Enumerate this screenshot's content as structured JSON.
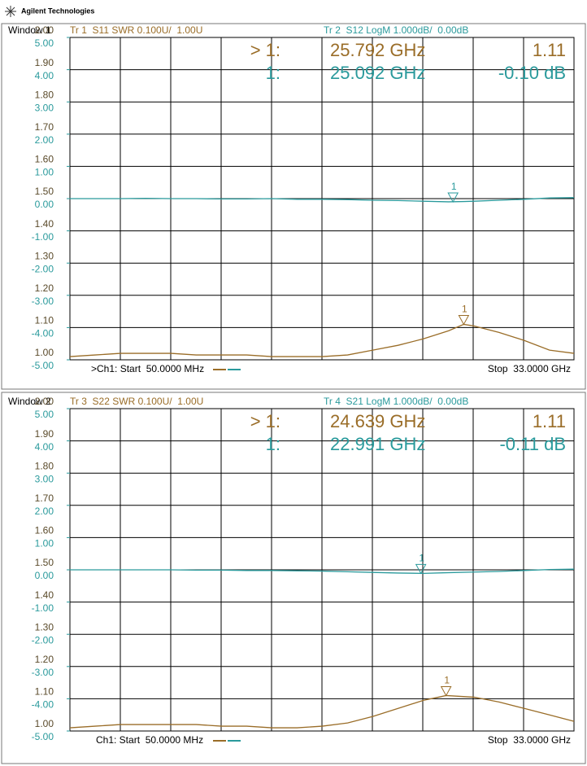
{
  "header": {
    "brand": "Agilent Technologies"
  },
  "chart_data": [
    {
      "type": "line",
      "window": "Window 1",
      "start": ">Ch1: Start  50.0000 MHz",
      "stop": "Stop  33.0000 GHz",
      "x": [
        0.05,
        1.7,
        3.35,
        5,
        6.65,
        8.3,
        9.95,
        11.6,
        13.25,
        14.9,
        16.55,
        18.2,
        19.85,
        21.5,
        23.15,
        24.8,
        25.792,
        26.45,
        28.1,
        29.75,
        31.4,
        33
      ],
      "xlim": [
        0.05,
        33
      ],
      "ylim": [
        1,
        2
      ],
      "yticks": [
        {
          "value": 1,
          "label": "1.00"
        },
        {
          "value": 1.1,
          "label": "1.10"
        },
        {
          "value": 1.2,
          "label": "1.20"
        },
        {
          "value": 1.3,
          "label": "1.30"
        },
        {
          "value": 1.4,
          "label": "1.40"
        },
        {
          "value": 1.5,
          "label": "1.50"
        },
        {
          "value": 1.6,
          "label": "1.60"
        },
        {
          "value": 1.7,
          "label": "1.70"
        },
        {
          "value": 1.8,
          "label": "1.80"
        },
        {
          "value": 1.9,
          "label": "1.90"
        },
        {
          "value": 2,
          "label": "2.00"
        }
      ],
      "y2lim": [
        -5,
        5
      ],
      "y2ticks": [
        {
          "value": -5,
          "label": "-5.00"
        },
        {
          "value": -4,
          "label": "-4.00"
        },
        {
          "value": -3,
          "label": "-3.00"
        },
        {
          "value": -2,
          "label": "-2.00"
        },
        {
          "value": -1,
          "label": "-1.00"
        },
        {
          "value": 0,
          "label": "0.00"
        },
        {
          "value": 1,
          "label": "1.00"
        },
        {
          "value": 2,
          "label": "2.00"
        },
        {
          "value": 3,
          "label": "3.00"
        },
        {
          "value": 4,
          "label": "4.00"
        },
        {
          "value": 5,
          "label": "5.00"
        }
      ],
      "grid": true,
      "series": [
        {
          "name": "Tr 1  S11 SWR 0.100U/  1.00U",
          "color": "#9a6d28",
          "values": [
            1.01,
            1.015,
            1.02,
            1.02,
            1.02,
            1.015,
            1.015,
            1.015,
            1.01,
            1.01,
            1.01,
            1.015,
            1.03,
            1.045,
            1.065,
            1.09,
            1.11,
            1.105,
            1.085,
            1.06,
            1.03,
            1.02
          ],
          "marker": {
            "readout": "> 1:",
            "id": "1",
            "x": 25.792,
            "x_label": "25.792 GHz",
            "value": 1.11,
            "value_label": "1.11"
          }
        },
        {
          "name": "Tr 2  S12 LogM 1.000dB/  0.00dB",
          "color": "#2a9a9c",
          "axis": "y2",
          "values": [
            0,
            0,
            0,
            0.01,
            0,
            0,
            -0.01,
            -0.01,
            0,
            -0.02,
            -0.02,
            -0.03,
            -0.05,
            -0.06,
            -0.08,
            -0.1,
            -0.09,
            -0.08,
            -0.05,
            -0.02,
            0.02,
            0.03
          ],
          "marker": {
            "readout": "1:",
            "id": "1",
            "x": 25.092,
            "x_label": "25.092 GHz",
            "value": -0.1,
            "value_label": "-0.10 dB"
          }
        }
      ]
    },
    {
      "type": "line",
      "window": "Window 2",
      "start": "Ch1: Start  50.0000 MHz",
      "stop": "Stop  33.0000 GHz",
      "x": [
        0.05,
        1.7,
        3.35,
        5,
        6.65,
        8.3,
        9.95,
        11.6,
        13.25,
        14.9,
        16.55,
        18.2,
        19.85,
        21.5,
        23.15,
        24.639,
        26.45,
        28.1,
        29.75,
        31.4,
        33
      ],
      "xlim": [
        0.05,
        33
      ],
      "ylim": [
        1,
        2
      ],
      "yticks": [
        {
          "value": 1,
          "label": "1.00"
        },
        {
          "value": 1.1,
          "label": "1.10"
        },
        {
          "value": 1.2,
          "label": "1.20"
        },
        {
          "value": 1.3,
          "label": "1.30"
        },
        {
          "value": 1.4,
          "label": "1.40"
        },
        {
          "value": 1.5,
          "label": "1.50"
        },
        {
          "value": 1.6,
          "label": "1.60"
        },
        {
          "value": 1.7,
          "label": "1.70"
        },
        {
          "value": 1.8,
          "label": "1.80"
        },
        {
          "value": 1.9,
          "label": "1.90"
        },
        {
          "value": 2,
          "label": "2.00"
        }
      ],
      "y2lim": [
        -5,
        5
      ],
      "y2ticks": [
        {
          "value": -5,
          "label": "-5.00"
        },
        {
          "value": -4,
          "label": "-4.00"
        },
        {
          "value": -3,
          "label": "-3.00"
        },
        {
          "value": -2,
          "label": "-2.00"
        },
        {
          "value": -1,
          "label": "-1.00"
        },
        {
          "value": 0,
          "label": "0.00"
        },
        {
          "value": 1,
          "label": "1.00"
        },
        {
          "value": 2,
          "label": "2.00"
        },
        {
          "value": 3,
          "label": "3.00"
        },
        {
          "value": 4,
          "label": "4.00"
        },
        {
          "value": 5,
          "label": "5.00"
        }
      ],
      "grid": true,
      "series": [
        {
          "name": "Tr 3  S22 SWR 0.100U/  1.00U",
          "color": "#9a6d28",
          "values": [
            1.01,
            1.015,
            1.02,
            1.02,
            1.02,
            1.02,
            1.015,
            1.015,
            1.01,
            1.01,
            1.015,
            1.025,
            1.045,
            1.07,
            1.095,
            1.11,
            1.105,
            1.09,
            1.07,
            1.05,
            1.03
          ],
          "marker": {
            "readout": "> 1:",
            "id": "1",
            "x": 24.639,
            "x_label": "24.639 GHz",
            "value": 1.11,
            "value_label": "1.11"
          }
        },
        {
          "name": "Tr 4  S21 LogM 1.000dB/  0.00dB",
          "color": "#2a9a9c",
          "axis": "y2",
          "values": [
            0,
            0,
            0,
            0,
            0,
            -0.01,
            -0.01,
            -0.02,
            -0.02,
            -0.03,
            -0.04,
            -0.06,
            -0.08,
            -0.1,
            -0.11,
            -0.09,
            -0.07,
            -0.05,
            -0.02,
            0.01,
            0.02
          ],
          "marker": {
            "readout": "1:",
            "id": "1",
            "x": 22.991,
            "x_label": "22.991 GHz",
            "value": -0.11,
            "value_label": "-0.11 dB"
          }
        }
      ]
    }
  ]
}
